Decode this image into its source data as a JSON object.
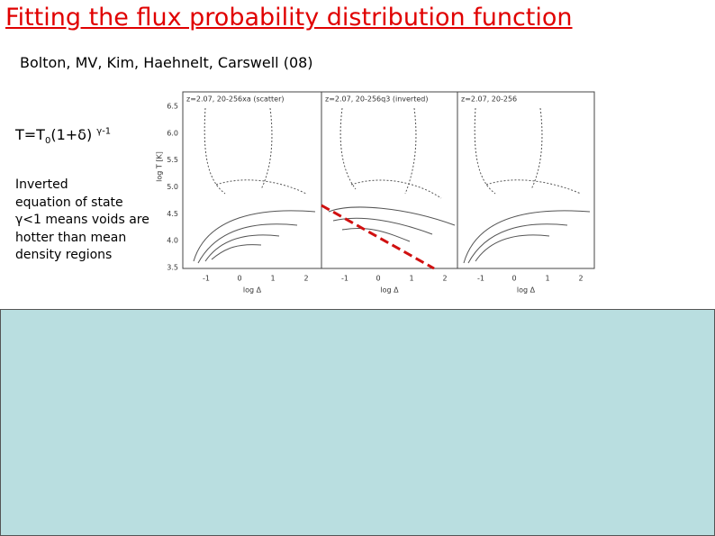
{
  "header": {
    "title": "Fitting the flux probability distribution function",
    "authors": "Bolton, MV, Kim, Haehnelt, Carswell (08)"
  },
  "equation": {
    "lhs": "T=T",
    "sub": "0",
    "mid": "(1+δ)",
    "sup": "γ-1"
  },
  "note": [
    "Inverted",
    "equation of state",
    "γ<1 means voids are",
    "hotter than mean",
    "density regions"
  ],
  "figure": {
    "panels": [
      {
        "label": "z=2.07, 20-256xa (scatter)"
      },
      {
        "label": "z=2.07, 20-256q3 (inverted)"
      },
      {
        "label": "z=2.07, 20-256"
      }
    ],
    "y_axis_label": "log T [K]",
    "yticks": [
      "6.5",
      "6.0",
      "5.5",
      "5.0",
      "4.5",
      "4.0",
      "3.5"
    ],
    "x_axis_label": "log Δ",
    "xticks": [
      "-1",
      "0",
      "1",
      "2"
    ]
  }
}
